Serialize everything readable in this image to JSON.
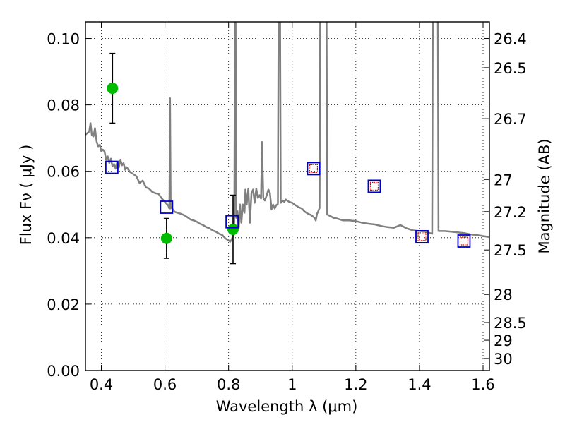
{
  "chart_data": {
    "type": "scatter",
    "title": "",
    "xlabel": "Wavelength  λ (μm)",
    "ylabel": "Flux  Fν  ( μJy )",
    "ylabel_right": "Magnitude (AB)",
    "xlim": [
      0.35,
      1.62
    ],
    "ylim": [
      0.0,
      0.105
    ],
    "grid": true,
    "x_ticks": [
      0.4,
      0.6,
      0.8,
      1.0,
      1.2,
      1.4,
      1.6
    ],
    "x_tick_labels": [
      "0.4",
      "0.6",
      "0.8",
      "1",
      "1.2",
      "1.4",
      "1.6"
    ],
    "y_ticks": [
      0.0,
      0.02,
      0.04,
      0.06,
      0.08,
      0.1
    ],
    "y_tick_labels": [
      "0.00",
      "0.02",
      "0.04",
      "0.06",
      "0.08",
      "0.10"
    ],
    "right_ticks": [
      {
        "label": "26.4",
        "mag": 26.4
      },
      {
        "label": "26.5",
        "mag": 26.5
      },
      {
        "label": "26.7",
        "mag": 26.7
      },
      {
        "label": "27",
        "mag": 27.0
      },
      {
        "label": "27.2",
        "mag": 27.2
      },
      {
        "label": "27.5",
        "mag": 27.5
      },
      {
        "label": "28",
        "mag": 28.0
      },
      {
        "label": "28.5",
        "mag": 28.5
      },
      {
        "label": "29",
        "mag": 29.0
      },
      {
        "label": "30",
        "mag": 30.0
      }
    ],
    "series": [
      {
        "kind": "line",
        "color": "#808080",
        "points": [
          [
            0.35,
            0.071
          ],
          [
            0.356,
            0.0715
          ],
          [
            0.362,
            0.072
          ],
          [
            0.366,
            0.0745
          ],
          [
            0.37,
            0.071
          ],
          [
            0.375,
            0.0705
          ],
          [
            0.38,
            0.073
          ],
          [
            0.385,
            0.069
          ],
          [
            0.39,
            0.0675
          ],
          [
            0.395,
            0.068
          ],
          [
            0.4,
            0.066
          ],
          [
            0.405,
            0.0665
          ],
          [
            0.41,
            0.066
          ],
          [
            0.415,
            0.0635
          ],
          [
            0.42,
            0.0645
          ],
          [
            0.425,
            0.0625
          ],
          [
            0.43,
            0.0638
          ],
          [
            0.435,
            0.0615
          ],
          [
            0.44,
            0.0622
          ],
          [
            0.445,
            0.0608
          ],
          [
            0.45,
            0.0628
          ],
          [
            0.455,
            0.0612
          ],
          [
            0.46,
            0.0635
          ],
          [
            0.465,
            0.0618
          ],
          [
            0.47,
            0.0625
          ],
          [
            0.475,
            0.0605
          ],
          [
            0.48,
            0.0612
          ],
          [
            0.49,
            0.0598
          ],
          [
            0.5,
            0.0592
          ],
          [
            0.51,
            0.0585
          ],
          [
            0.52,
            0.0565
          ],
          [
            0.53,
            0.0572
          ],
          [
            0.54,
            0.0552
          ],
          [
            0.55,
            0.0548
          ],
          [
            0.56,
            0.0538
          ],
          [
            0.57,
            0.0534
          ],
          [
            0.58,
            0.0532
          ],
          [
            0.59,
            0.0518
          ],
          [
            0.6,
            0.0508
          ],
          [
            0.605,
            0.0502
          ],
          [
            0.61,
            0.0498
          ],
          [
            0.614,
            0.0488
          ],
          [
            0.616,
            0.082
          ],
          [
            0.618,
            0.0488
          ],
          [
            0.62,
            0.0492
          ],
          [
            0.63,
            0.0478
          ],
          [
            0.64,
            0.0475
          ],
          [
            0.65,
            0.0472
          ],
          [
            0.66,
            0.0468
          ],
          [
            0.67,
            0.0462
          ],
          [
            0.68,
            0.0455
          ],
          [
            0.69,
            0.0452
          ],
          [
            0.7,
            0.0448
          ],
          [
            0.71,
            0.0442
          ],
          [
            0.72,
            0.0438
          ],
          [
            0.73,
            0.0432
          ],
          [
            0.74,
            0.0428
          ],
          [
            0.75,
            0.0422
          ],
          [
            0.76,
            0.0418
          ],
          [
            0.77,
            0.0412
          ],
          [
            0.78,
            0.0408
          ],
          [
            0.79,
            0.0398
          ],
          [
            0.8,
            0.0392
          ],
          [
            0.805,
            0.0388
          ],
          [
            0.81,
            0.0395
          ],
          [
            0.815,
            0.041
          ],
          [
            0.818,
            0.045
          ],
          [
            0.82,
            0.106
          ],
          [
            0.822,
            0.106
          ],
          [
            0.824,
            0.046
          ],
          [
            0.828,
            0.048
          ],
          [
            0.832,
            0.043
          ],
          [
            0.836,
            0.05
          ],
          [
            0.84,
            0.0445
          ],
          [
            0.845,
            0.05
          ],
          [
            0.85,
            0.0475
          ],
          [
            0.853,
            0.0545
          ],
          [
            0.857,
            0.05
          ],
          [
            0.862,
            0.0548
          ],
          [
            0.867,
            0.0445
          ],
          [
            0.872,
            0.0535
          ],
          [
            0.877,
            0.0545
          ],
          [
            0.882,
            0.0505
          ],
          [
            0.887,
            0.0548
          ],
          [
            0.892,
            0.052
          ],
          [
            0.897,
            0.0528
          ],
          [
            0.902,
            0.0518
          ],
          [
            0.905,
            0.0688
          ],
          [
            0.909,
            0.052
          ],
          [
            0.914,
            0.0512
          ],
          [
            0.92,
            0.0528
          ],
          [
            0.925,
            0.0545
          ],
          [
            0.93,
            0.0535
          ],
          [
            0.935,
            0.0485
          ],
          [
            0.94,
            0.05
          ],
          [
            0.945,
            0.0488
          ],
          [
            0.95,
            0.0498
          ],
          [
            0.955,
            0.0502
          ],
          [
            0.957,
            0.106
          ],
          [
            0.962,
            0.106
          ],
          [
            0.964,
            0.0505
          ],
          [
            0.97,
            0.0512
          ],
          [
            0.975,
            0.0508
          ],
          [
            0.98,
            0.0515
          ],
          [
            0.99,
            0.0508
          ],
          [
            1.0,
            0.0505
          ],
          [
            1.01,
            0.0498
          ],
          [
            1.02,
            0.0492
          ],
          [
            1.03,
            0.0488
          ],
          [
            1.04,
            0.0478
          ],
          [
            1.05,
            0.0472
          ],
          [
            1.06,
            0.0468
          ],
          [
            1.07,
            0.046
          ],
          [
            1.074,
            0.0452
          ],
          [
            1.078,
            0.0472
          ],
          [
            1.082,
            0.048
          ],
          [
            1.086,
            0.049
          ],
          [
            1.088,
            0.106
          ],
          [
            1.108,
            0.106
          ],
          [
            1.11,
            0.047
          ],
          [
            1.12,
            0.0465
          ],
          [
            1.13,
            0.046
          ],
          [
            1.14,
            0.0458
          ],
          [
            1.15,
            0.0455
          ],
          [
            1.16,
            0.0452
          ],
          [
            1.18,
            0.0452
          ],
          [
            1.2,
            0.045
          ],
          [
            1.22,
            0.0445
          ],
          [
            1.24,
            0.0442
          ],
          [
            1.26,
            0.044
          ],
          [
            1.28,
            0.0435
          ],
          [
            1.3,
            0.0432
          ],
          [
            1.32,
            0.043
          ],
          [
            1.34,
            0.0438
          ],
          [
            1.36,
            0.0428
          ],
          [
            1.38,
            0.0422
          ],
          [
            1.4,
            0.042
          ],
          [
            1.42,
            0.0418
          ],
          [
            1.43,
            0.0415
          ],
          [
            1.44,
            0.0412
          ],
          [
            1.442,
            0.106
          ],
          [
            1.458,
            0.106
          ],
          [
            1.46,
            0.042
          ],
          [
            1.48,
            0.042
          ],
          [
            1.5,
            0.0418
          ],
          [
            1.52,
            0.0416
          ],
          [
            1.54,
            0.0414
          ],
          [
            1.56,
            0.041
          ],
          [
            1.58,
            0.0408
          ],
          [
            1.6,
            0.0405
          ],
          [
            1.62,
            0.0402
          ]
        ]
      },
      {
        "kind": "markers",
        "marker": "circle",
        "color": "#00bb00",
        "points": [
          {
            "x": 0.435,
            "y": 0.085,
            "err": 0.0105
          },
          {
            "x": 0.605,
            "y": 0.0398,
            "err": 0.006
          },
          {
            "x": 0.814,
            "y": 0.0425,
            "err": 0.0103
          }
        ]
      },
      {
        "kind": "markers",
        "marker": "square",
        "color": "#0000cc",
        "points": [
          {
            "x": 0.433,
            "y": 0.0612
          },
          {
            "x": 0.605,
            "y": 0.0492
          },
          {
            "x": 0.811,
            "y": 0.0448
          }
        ]
      },
      {
        "kind": "markers",
        "marker": "square-with-inner",
        "color": "#0000cc",
        "inner_color": "#dd0000",
        "points": [
          {
            "x": 1.067,
            "y": 0.0608
          },
          {
            "x": 1.258,
            "y": 0.0555
          },
          {
            "x": 1.408,
            "y": 0.0403
          },
          {
            "x": 1.54,
            "y": 0.039
          }
        ]
      }
    ]
  }
}
